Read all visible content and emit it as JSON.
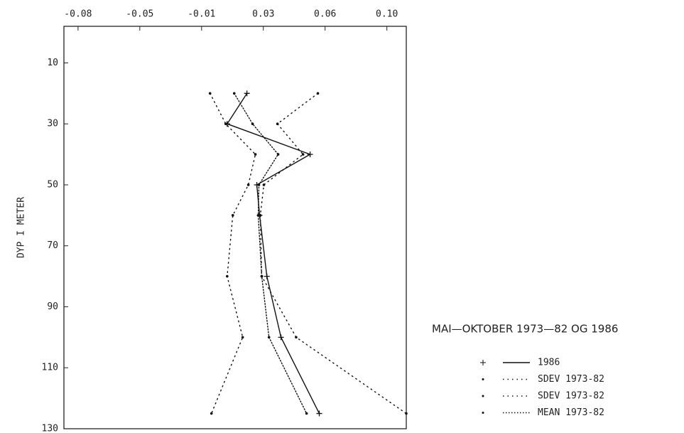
{
  "chart_data": {
    "type": "line",
    "ylabel": "DYP I METER",
    "legend_title": "MAI—OKTOBER 1973—82 OG 1986",
    "y": [
      20,
      30,
      40,
      50,
      60,
      80,
      100,
      125
    ],
    "ylim": [
      -2,
      130
    ],
    "yticks": [
      10,
      30,
      50,
      70,
      90,
      110,
      130
    ],
    "xlim": [
      -0.088,
      0.106
    ],
    "xticks": [
      {
        "value": -0.08,
        "label": "-0.08"
      },
      {
        "value": -0.045,
        "label": "-0.05"
      },
      {
        "value": -0.01,
        "label": "-0.01"
      },
      {
        "value": 0.025,
        "label": "0.03"
      },
      {
        "value": 0.06,
        "label": "0.06"
      },
      {
        "value": 0.095,
        "label": "0.10"
      }
    ],
    "series": [
      {
        "name": "1986",
        "color": "#111",
        "dash": "solid",
        "marker": "plus",
        "values": [
          0.0157,
          0.0045,
          0.0515,
          0.0213,
          0.0229,
          0.027,
          0.035,
          0.0567
        ]
      },
      {
        "name": "SDEV 1973-82",
        "color": "#111",
        "dash": "dotted",
        "marker": "dot",
        "values": [
          -0.0052,
          0.0037,
          0.0205,
          0.0165,
          0.0077,
          0.0045,
          0.0133,
          -0.0044
        ]
      },
      {
        "name": "SDEV 1973-82",
        "color": "#111",
        "dash": "dotted",
        "marker": "dot",
        "values": [
          0.0559,
          0.033,
          0.0475,
          0.0253,
          0.0233,
          0.0241,
          0.0436,
          0.106
        ]
      },
      {
        "name": "MEAN 1973-82",
        "color": "#111",
        "dash": "dense",
        "marker": "dot",
        "values": [
          0.0085,
          0.0189,
          0.0334,
          0.0225,
          0.0221,
          0.0241,
          0.0282,
          0.0495
        ]
      }
    ]
  }
}
